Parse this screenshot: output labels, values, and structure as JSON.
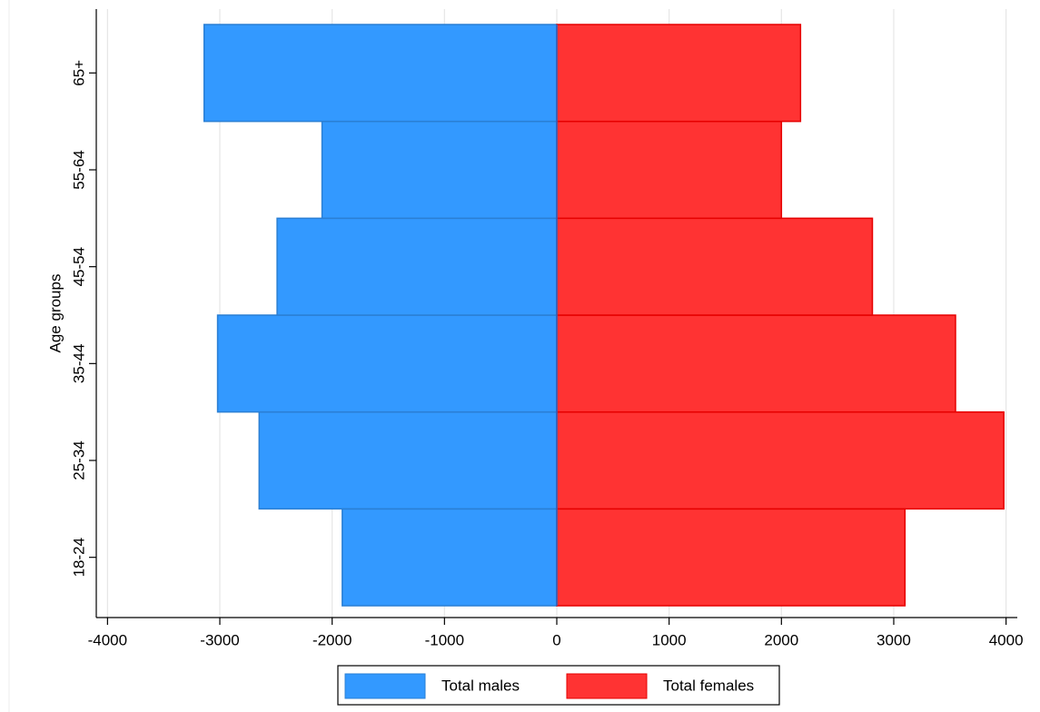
{
  "chart_data": {
    "type": "bar",
    "orientation": "horizontal",
    "y_label": "Age groups",
    "categories": [
      "18-24",
      "25-34",
      "35-44",
      "45-54",
      "55-64",
      "65+"
    ],
    "series": [
      {
        "name": "Total males",
        "color": "#3399ff",
        "values": [
          -1910,
          -2650,
          -3020,
          -2490,
          -2090,
          -3140
        ]
      },
      {
        "name": "Total females",
        "color": "#ff3333",
        "values": [
          3100,
          3980,
          3550,
          2810,
          2000,
          2170
        ]
      }
    ],
    "xlim": [
      -4100,
      4100
    ],
    "xticks": [
      -4000,
      -3000,
      -2000,
      -1000,
      0,
      1000,
      2000,
      3000,
      4000
    ],
    "grid": true,
    "legend": "bottom"
  }
}
